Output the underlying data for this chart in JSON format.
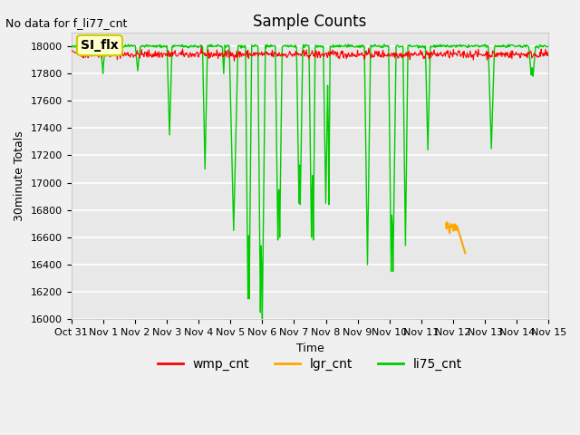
{
  "title": "Sample Counts",
  "subtitle": "No data for f_li77_cnt",
  "ylabel": "30minute Totals",
  "xlabel": "Time",
  "annotation_text": "SI_flx",
  "ylim": [
    16000,
    18100
  ],
  "yticks": [
    16000,
    16200,
    16400,
    16600,
    16800,
    17000,
    17200,
    17400,
    17600,
    17800,
    18000
  ],
  "xtick_labels": [
    "Oct 31",
    "Nov 1",
    "Nov 2",
    "Nov 3",
    "Nov 4",
    "Nov 5",
    "Nov 6",
    "Nov 7",
    "Nov 8",
    "Nov 9",
    "Nov 10",
    "Nov 11",
    "Nov 12",
    "Nov 13",
    "Nov 14",
    "Nov 15"
  ],
  "colors": {
    "wmp_cnt": "#ff0000",
    "lgr_cnt": "#ffa500",
    "li75_cnt": "#00cc00",
    "background": "#e8e8e8",
    "grid": "#ffffff",
    "annotation_bg": "#ffffcc",
    "annotation_border": "#cccc00"
  },
  "legend": [
    {
      "label": "wmp_cnt",
      "color": "#ff0000"
    },
    {
      "label": "lgr_cnt",
      "color": "#ffa500"
    },
    {
      "label": "li75_cnt",
      "color": "#00cc00"
    }
  ]
}
